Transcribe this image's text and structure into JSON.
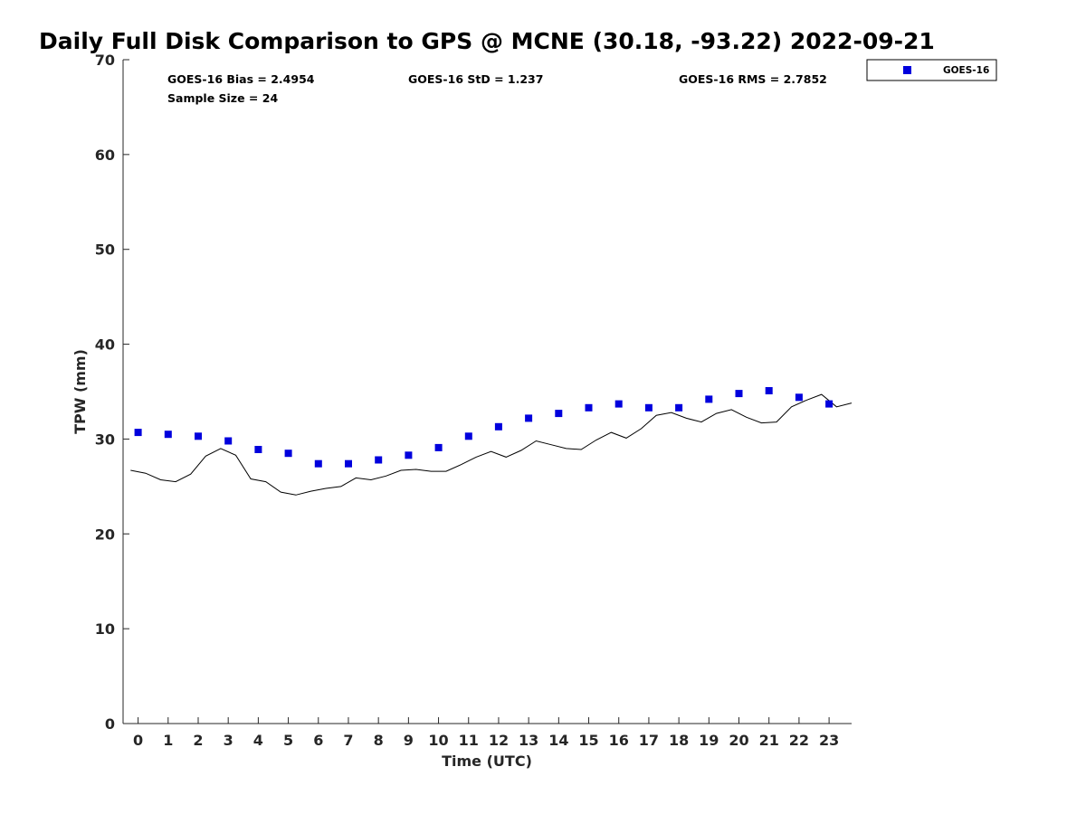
{
  "chart_data": {
    "type": "scatter",
    "title": "Daily Full Disk Comparison to GPS @ MCNE (30.18, -93.22) 2022-09-21",
    "xlabel": "Time (UTC)",
    "ylabel": "TPW (mm)",
    "xlim": [
      -0.5,
      23.75
    ],
    "ylim": [
      0,
      70
    ],
    "x_ticks": [
      0,
      1,
      2,
      3,
      4,
      5,
      6,
      7,
      8,
      9,
      10,
      11,
      12,
      13,
      14,
      15,
      16,
      17,
      18,
      19,
      20,
      21,
      22,
      23
    ],
    "y_ticks": [
      0,
      10,
      20,
      30,
      40,
      50,
      60,
      70
    ],
    "grid": false,
    "legend_position": "outside-top-right",
    "stats": {
      "bias": "GOES-16 Bias = 2.4954",
      "std": "GOES-16 StD = 1.237",
      "rms": "GOES-16 RMS = 2.7852",
      "sample": "Sample Size = 24"
    },
    "series": [
      {
        "name": "GOES-16",
        "kind": "scatter",
        "marker": "square",
        "color": "#0000dd",
        "x": [
          0,
          1,
          2,
          3,
          4,
          5,
          6,
          7,
          8,
          9,
          10,
          11,
          12,
          13,
          14,
          15,
          16,
          17,
          18,
          19,
          20,
          21,
          22,
          23
        ],
        "y": [
          30.7,
          30.5,
          30.3,
          29.8,
          28.9,
          28.5,
          27.4,
          27.4,
          27.8,
          28.3,
          29.1,
          30.3,
          31.3,
          32.2,
          32.7,
          33.3,
          33.7,
          33.3,
          33.3,
          34.2,
          34.8,
          35.1,
          34.4,
          33.7
        ]
      },
      {
        "kind": "line",
        "color": "#000000",
        "x": [
          -0.25,
          0.25,
          0.75,
          1.25,
          1.75,
          2.25,
          2.75,
          3.25,
          3.75,
          4.25,
          4.75,
          5.25,
          5.75,
          6.25,
          6.75,
          7.25,
          7.75,
          8.25,
          8.75,
          9.25,
          9.75,
          10.25,
          10.75,
          11.25,
          11.75,
          12.25,
          12.75,
          13.25,
          13.75,
          14.25,
          14.75,
          15.25,
          15.75,
          16.25,
          16.75,
          17.25,
          17.75,
          18.25,
          18.75,
          19.25,
          19.75,
          20.25,
          20.75,
          21.25,
          21.75,
          22.25,
          22.75,
          23.25,
          23.75
        ],
        "y": [
          26.7,
          26.4,
          25.7,
          25.5,
          26.3,
          28.2,
          29.0,
          28.3,
          25.8,
          25.5,
          24.4,
          24.1,
          24.5,
          24.8,
          25.0,
          25.9,
          25.7,
          26.1,
          26.7,
          26.8,
          26.6,
          26.6,
          27.3,
          28.1,
          28.7,
          28.1,
          28.8,
          29.8,
          29.4,
          29.0,
          28.9,
          29.9,
          30.7,
          30.1,
          31.1,
          32.5,
          32.8,
          32.2,
          31.8,
          32.7,
          33.1,
          32.3,
          31.7,
          31.8,
          33.4,
          34.1,
          34.7,
          33.4,
          33.8
        ]
      }
    ]
  }
}
